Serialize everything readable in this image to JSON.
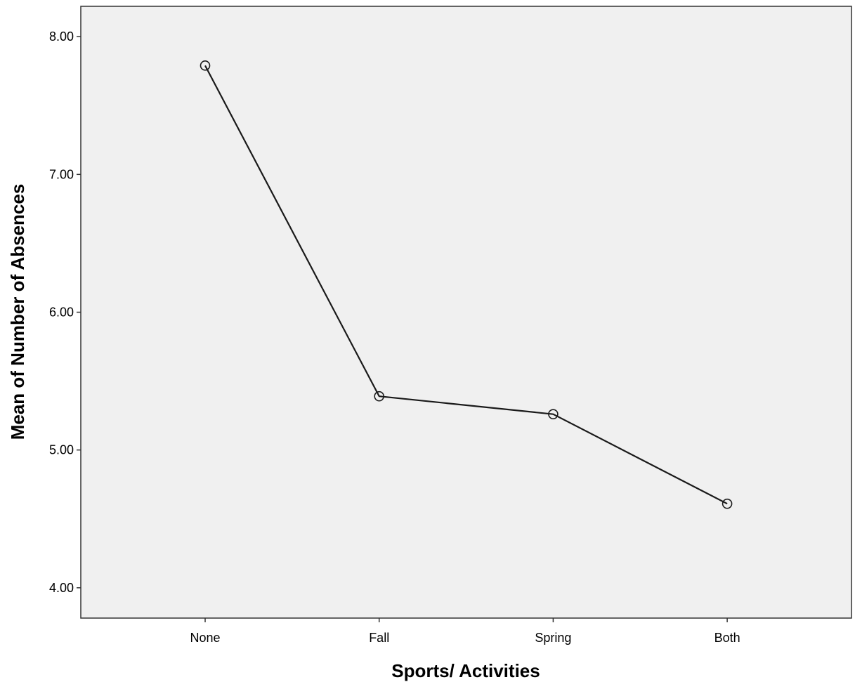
{
  "chart_data": {
    "type": "line",
    "categories": [
      "None",
      "Fall",
      "Spring",
      "Both"
    ],
    "values": [
      7.79,
      5.39,
      5.26,
      4.61
    ],
    "xlabel": "Sports/ Activities",
    "ylabel": "Mean of Number of Absences",
    "ylim": [
      3.78,
      8.22
    ],
    "yticks": [
      "4.00",
      "5.00",
      "6.00",
      "7.00",
      "8.00"
    ],
    "marker": "open-circle",
    "grid": false,
    "colors": {
      "plot_background": "#f0f0f0",
      "line": "#1a1a1a",
      "frame": "#333333"
    }
  }
}
